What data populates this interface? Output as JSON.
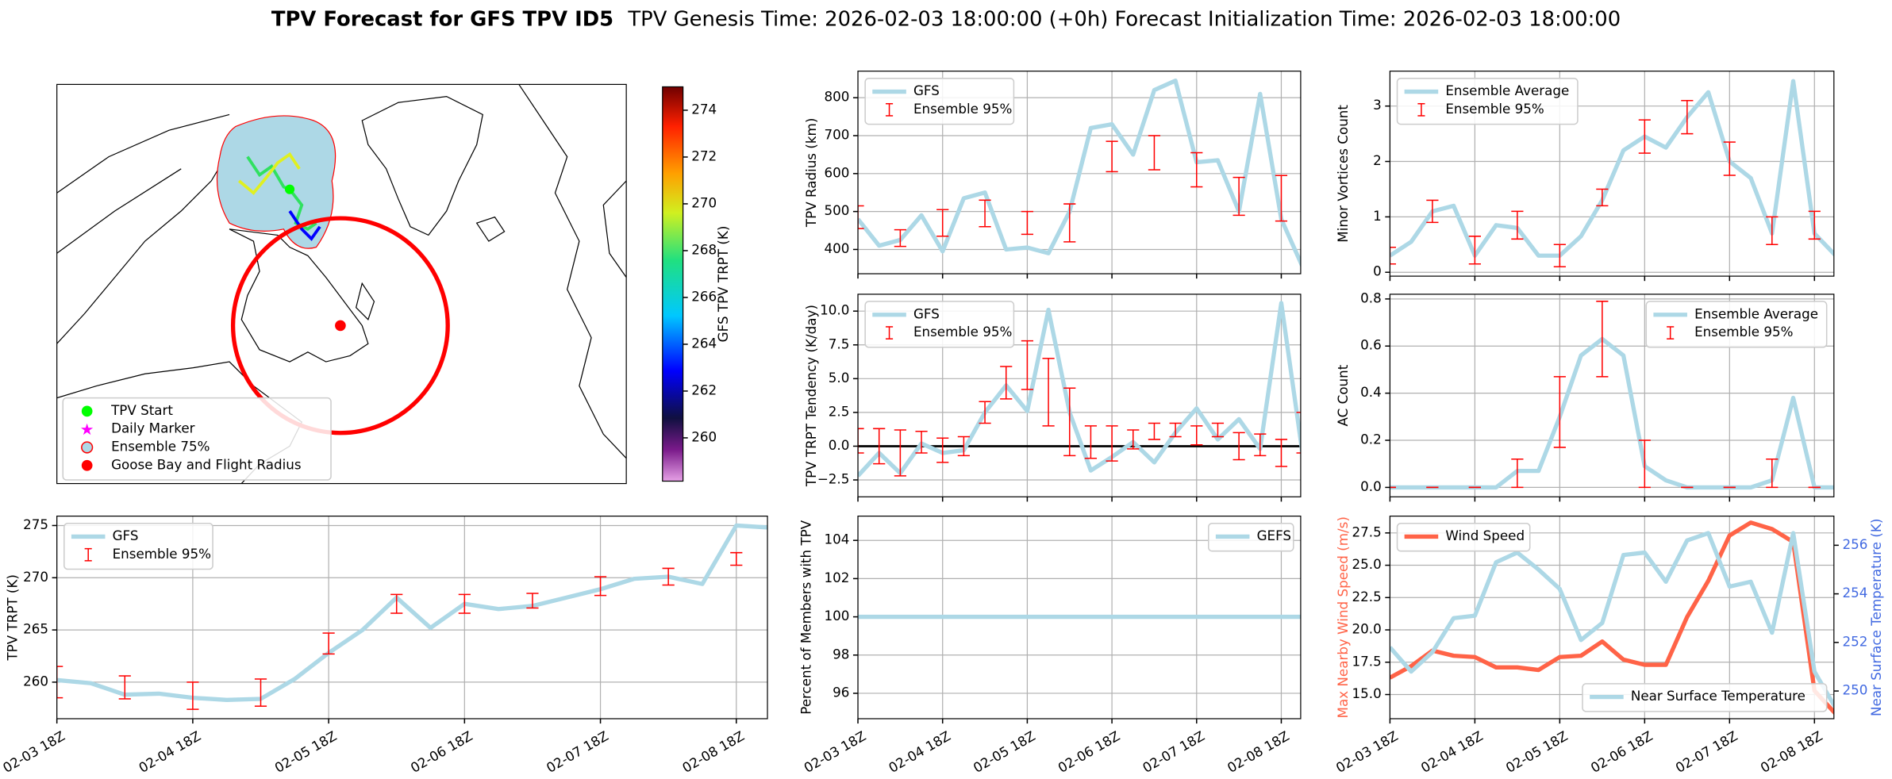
{
  "title": "TPV Forecast for GFS TPV ID5",
  "subtitle": "TPV Genesis Time: 2026-02-03 18:00:00 (+0h)   Forecast Initialization Time: 2026-02-03 18:00:00",
  "chart_data": [
    {
      "type": "map",
      "legend": [
        {
          "name": "TPV Start",
          "color": "#00ff00"
        },
        {
          "name": "Daily Marker",
          "color": "#ff00ff"
        },
        {
          "name": "Ensemble 75%",
          "color": "#add8e6"
        },
        {
          "name": "Goose Bay and Flight Radius",
          "color": "#ff0000"
        }
      ],
      "colorbar": {
        "label": "GFS TPV TRPT (K)",
        "lim": [
          258.15,
          275
        ],
        "ticks": [
          260,
          262,
          264,
          266,
          268,
          270,
          272,
          274
        ]
      }
    },
    {
      "type": "line",
      "ylabel": "TPV Radius (km)",
      "legend": "upper left",
      "grid": true,
      "sharex": 6,
      "x": [
        0,
        6,
        12,
        18,
        24,
        30,
        36,
        42,
        48,
        54,
        60,
        66,
        72,
        78,
        84,
        90,
        96,
        102,
        108,
        114,
        120,
        126
      ],
      "xlim": [
        0,
        125.5
      ],
      "ylim": [
        336,
        870
      ],
      "yticks": [
        400,
        500,
        600,
        700,
        800
      ],
      "series": [
        {
          "name": "GFS",
          "kind": "line",
          "color": "#add8e6",
          "values": [
            480,
            410,
            425,
            490,
            395,
            535,
            550,
            400,
            405,
            390,
            500,
            720,
            730,
            650,
            820,
            845,
            630,
            635,
            500,
            810,
            480,
            355
          ]
        },
        {
          "name": "Ensemble 95%",
          "kind": "errorbar",
          "color": "#ff0000",
          "x": [
            0,
            12,
            24,
            36,
            48,
            60,
            72,
            84,
            96,
            108,
            120
          ],
          "values": [
            485,
            430,
            470,
            495,
            470,
            470,
            645,
            655,
            610,
            540,
            535
          ],
          "errors": [
            30,
            22,
            35,
            35,
            30,
            50,
            40,
            45,
            45,
            50,
            60
          ]
        }
      ]
    },
    {
      "type": "line",
      "ylabel": "Minor Vortices Count",
      "legend": "upper left",
      "grid": true,
      "sharex": 7,
      "x": [
        0,
        6,
        12,
        18,
        24,
        30,
        36,
        42,
        48,
        54,
        60,
        66,
        72,
        78,
        84,
        90,
        96,
        102,
        108,
        114,
        120,
        126
      ],
      "xlim": [
        0,
        125.5
      ],
      "ylim": [
        -0.07,
        3.63
      ],
      "yticks": [
        0,
        1,
        2,
        3
      ],
      "series": [
        {
          "name": "Ensemble Average",
          "kind": "line",
          "color": "#add8e6",
          "values": [
            0.3,
            0.55,
            1.1,
            1.2,
            0.3,
            0.85,
            0.8,
            0.3,
            0.3,
            0.65,
            1.3,
            2.2,
            2.45,
            2.25,
            2.8,
            3.25,
            2.0,
            1.7,
            0.7,
            3.45,
            0.7,
            0.3
          ]
        },
        {
          "name": "Ensemble 95%",
          "kind": "errorbar",
          "color": "#ff0000",
          "x": [
            0,
            12,
            24,
            36,
            48,
            60,
            72,
            84,
            96,
            108,
            120
          ],
          "values": [
            0.3,
            1.1,
            0.4,
            0.85,
            0.3,
            1.35,
            2.45,
            2.8,
            2.05,
            0.75,
            0.85
          ],
          "errors": [
            0.15,
            0.2,
            0.25,
            0.25,
            0.2,
            0.15,
            0.3,
            0.3,
            0.3,
            0.25,
            0.25
          ]
        }
      ]
    },
    {
      "type": "line",
      "ylabel": "TPV TRPT (K)",
      "legend": "upper left",
      "grid": true,
      "x": [
        0,
        6,
        12,
        18,
        24,
        30,
        36,
        42,
        48,
        54,
        60,
        66,
        72,
        78,
        84,
        90,
        96,
        102,
        108,
        114,
        120,
        126
      ],
      "xlim": [
        0,
        125.5
      ],
      "xticks": [
        {
          "value": 0,
          "label": "02-03 18Z"
        },
        {
          "value": 24,
          "label": "02-04 18Z"
        },
        {
          "value": 48,
          "label": "02-05 18Z"
        },
        {
          "value": 72,
          "label": "02-06 18Z"
        },
        {
          "value": 96,
          "label": "02-07 18Z"
        },
        {
          "value": 120,
          "label": "02-08 18Z"
        }
      ],
      "ylim": [
        256.5,
        275.9
      ],
      "yticks": [
        260,
        265,
        270,
        275
      ],
      "series": [
        {
          "name": "GFS",
          "kind": "line",
          "color": "#add8e6",
          "values": [
            260.2,
            259.9,
            258.8,
            258.9,
            258.5,
            258.3,
            258.4,
            260.3,
            262.8,
            265.0,
            268.1,
            265.2,
            267.5,
            267.0,
            267.3,
            268.1,
            268.9,
            269.9,
            270.1,
            269.4,
            275.0,
            274.8
          ]
        },
        {
          "name": "Ensemble 95%",
          "kind": "errorbar",
          "color": "#ff0000",
          "x": [
            0,
            12,
            24,
            36,
            48,
            60,
            72,
            84,
            96,
            108,
            120
          ],
          "values": [
            260,
            259.5,
            258.7,
            259,
            263.7,
            267.5,
            267.5,
            267.8,
            269.2,
            270.1,
            271.8
          ],
          "errors": [
            1.5,
            1.1,
            1.3,
            1.3,
            1,
            0.9,
            0.9,
            0.7,
            0.9,
            0.8,
            0.6
          ]
        }
      ]
    },
    {
      "type": "line",
      "ylabel": "TPV TRPT Tendency (K/day)",
      "legend": "upper left",
      "grid": true,
      "sharex": 6,
      "hline": 0,
      "x": [
        0,
        6,
        12,
        18,
        24,
        30,
        36,
        42,
        48,
        54,
        60,
        66,
        72,
        78,
        84,
        90,
        96,
        102,
        108,
        114,
        120,
        126
      ],
      "xlim": [
        0,
        125.5
      ],
      "ylim": [
        -3.75,
        11.25
      ],
      "yticks": [
        {
          "value": -2.5,
          "label": "−2.5"
        },
        {
          "value": 0,
          "label": "0.0"
        },
        {
          "value": 2.5,
          "label": "2.5"
        },
        {
          "value": 5,
          "label": "5.0"
        },
        {
          "value": 7.5,
          "label": "7.5"
        },
        {
          "value": 10,
          "label": "10.0"
        }
      ],
      "series": [
        {
          "name": "GFS",
          "kind": "line",
          "color": "#add8e6",
          "values": [
            -2.2,
            -0.5,
            -2.0,
            0.2,
            -0.5,
            -0.3,
            2.5,
            4.5,
            2.6,
            10.1,
            2.5,
            -1.8,
            -0.8,
            0.3,
            -1.2,
            1.0,
            2.8,
            0.5,
            2.0,
            -0.2,
            10.6,
            -0.5
          ]
        },
        {
          "name": "Ensemble 95%",
          "kind": "errorbar",
          "color": "#ff0000",
          "x": [
            0,
            6,
            12,
            18,
            24,
            30,
            36,
            42,
            48,
            54,
            60,
            66,
            72,
            78,
            84,
            90,
            96,
            102,
            108,
            114,
            120,
            126
          ],
          "values": [
            0.4,
            0,
            -0.5,
            0.3,
            -0.3,
            0,
            2.5,
            4.7,
            6,
            4,
            1.8,
            0.3,
            0.2,
            0.5,
            1.1,
            1.2,
            0.8,
            1.2,
            0,
            0.1,
            -0.5,
            1
          ],
          "errors": [
            0.9,
            1.3,
            1.7,
            0.8,
            0.9,
            0.7,
            0.8,
            1.2,
            1.8,
            2.5,
            2.5,
            1.2,
            1.3,
            0.7,
            0.6,
            0.5,
            0.7,
            0.5,
            1,
            0.8,
            1,
            1.5
          ]
        }
      ]
    },
    {
      "type": "line",
      "ylabel": "AC Count",
      "legend": "upper right",
      "grid": true,
      "sharex": 7,
      "x": [
        0,
        6,
        12,
        18,
        24,
        30,
        36,
        42,
        48,
        54,
        60,
        66,
        72,
        78,
        84,
        90,
        96,
        102,
        108,
        114,
        120,
        126
      ],
      "xlim": [
        0,
        125.5
      ],
      "ylim": [
        -0.04,
        0.82
      ],
      "yticks": [
        {
          "value": 0,
          "label": "0.0"
        },
        {
          "value": 0.2,
          "label": "0.2"
        },
        {
          "value": 0.4,
          "label": "0.4"
        },
        {
          "value": 0.6,
          "label": "0.6"
        },
        {
          "value": 0.8,
          "label": "0.8"
        }
      ],
      "series": [
        {
          "name": "Ensemble Average",
          "kind": "line",
          "color": "#add8e6",
          "values": [
            0,
            0,
            0,
            0,
            0,
            0,
            0.07,
            0.07,
            0.3,
            0.56,
            0.63,
            0.56,
            0.09,
            0.03,
            0,
            0,
            0,
            0,
            0.03,
            0.38,
            0,
            0
          ]
        },
        {
          "name": "Ensemble 95%",
          "kind": "errorbar",
          "color": "#ff0000",
          "x": [
            0,
            12,
            24,
            36,
            48,
            60,
            72,
            84,
            96,
            108,
            120
          ],
          "values": [
            0,
            0,
            0,
            0.06,
            0.32,
            0.63,
            0.1,
            0,
            0,
            0.06,
            0
          ],
          "errors": [
            0,
            0,
            0,
            0.06,
            0.15,
            0.16,
            0.1,
            0,
            0,
            0.06,
            0
          ]
        }
      ]
    },
    {
      "type": "line",
      "ylabel": "Percent of Members with TPV",
      "legend": "upper right",
      "grid": true,
      "x": [
        0,
        6,
        12,
        18,
        24,
        30,
        36,
        42,
        48,
        54,
        60,
        66,
        72,
        78,
        84,
        90,
        96,
        102,
        108,
        114,
        120,
        126
      ],
      "xlim": [
        0,
        125.5
      ],
      "xticks": [
        {
          "value": 0,
          "label": "02-03 18Z"
        },
        {
          "value": 24,
          "label": "02-04 18Z"
        },
        {
          "value": 48,
          "label": "02-05 18Z"
        },
        {
          "value": 72,
          "label": "02-06 18Z"
        },
        {
          "value": 96,
          "label": "02-07 18Z"
        },
        {
          "value": 120,
          "label": "02-08 18Z"
        }
      ],
      "ylim": [
        94.67,
        105.27
      ],
      "yticks": [
        96,
        98,
        100,
        102,
        104
      ],
      "series": [
        {
          "name": "GEFS",
          "kind": "line",
          "color": "#add8e6",
          "values": [
            100,
            100,
            100,
            100,
            100,
            100,
            100,
            100,
            100,
            100,
            100,
            100,
            100,
            100,
            100,
            100,
            100,
            100,
            100,
            100,
            100,
            100
          ]
        }
      ]
    },
    {
      "type": "line",
      "ylabel": "Max Nearby Wind Speed (m/s)",
      "ylabel_color": "#ff6347",
      "y2label": "Near Surface Temperature (K)",
      "y2label_color": "#4169e1",
      "legend": "upper left",
      "legend2": "lower right",
      "grid": true,
      "x": [
        0,
        6,
        12,
        18,
        24,
        30,
        36,
        42,
        48,
        54,
        60,
        66,
        72,
        78,
        84,
        90,
        96,
        102,
        108,
        114,
        120,
        126
      ],
      "xlim": [
        0,
        125.5
      ],
      "xticks": [
        {
          "value": 0,
          "label": "02-03 18Z"
        },
        {
          "value": 24,
          "label": "02-04 18Z"
        },
        {
          "value": 48,
          "label": "02-05 18Z"
        },
        {
          "value": 72,
          "label": "02-06 18Z"
        },
        {
          "value": 96,
          "label": "02-07 18Z"
        },
        {
          "value": 120,
          "label": "02-08 18Z"
        }
      ],
      "ylim": [
        13.13,
        28.8
      ],
      "yticks": [
        {
          "value": 15,
          "label": "15.0"
        },
        {
          "value": 17.5,
          "label": "17.5"
        },
        {
          "value": 20,
          "label": "20.0"
        },
        {
          "value": 22.5,
          "label": "22.5"
        },
        {
          "value": 25,
          "label": "25.0"
        },
        {
          "value": 27.5,
          "label": "27.5"
        }
      ],
      "y2lim": [
        248.86,
        257.2
      ],
      "y2ticks": [
        250,
        252,
        254,
        256
      ],
      "series": [
        {
          "name": "Wind Speed",
          "kind": "line",
          "color": "#ff6347",
          "values": [
            16.3,
            17.2,
            18.4,
            18.0,
            17.9,
            17.1,
            17.1,
            16.9,
            17.9,
            18.0,
            19.1,
            17.7,
            17.3,
            17.3,
            21.0,
            23.8,
            27.3,
            28.3,
            27.8,
            26.8,
            15.3,
            13.5
          ]
        },
        {
          "name": "Near Surface Temperature",
          "kind": "line",
          "axis": "y2",
          "color": "#add8e6",
          "values": [
            251.8,
            250.8,
            251.6,
            253.0,
            253.1,
            255.3,
            255.7,
            255.0,
            254.2,
            252.1,
            252.8,
            255.6,
            255.7,
            254.5,
            256.2,
            256.5,
            254.3,
            254.5,
            252.4,
            256.5,
            250.8,
            249.3
          ]
        }
      ]
    }
  ]
}
